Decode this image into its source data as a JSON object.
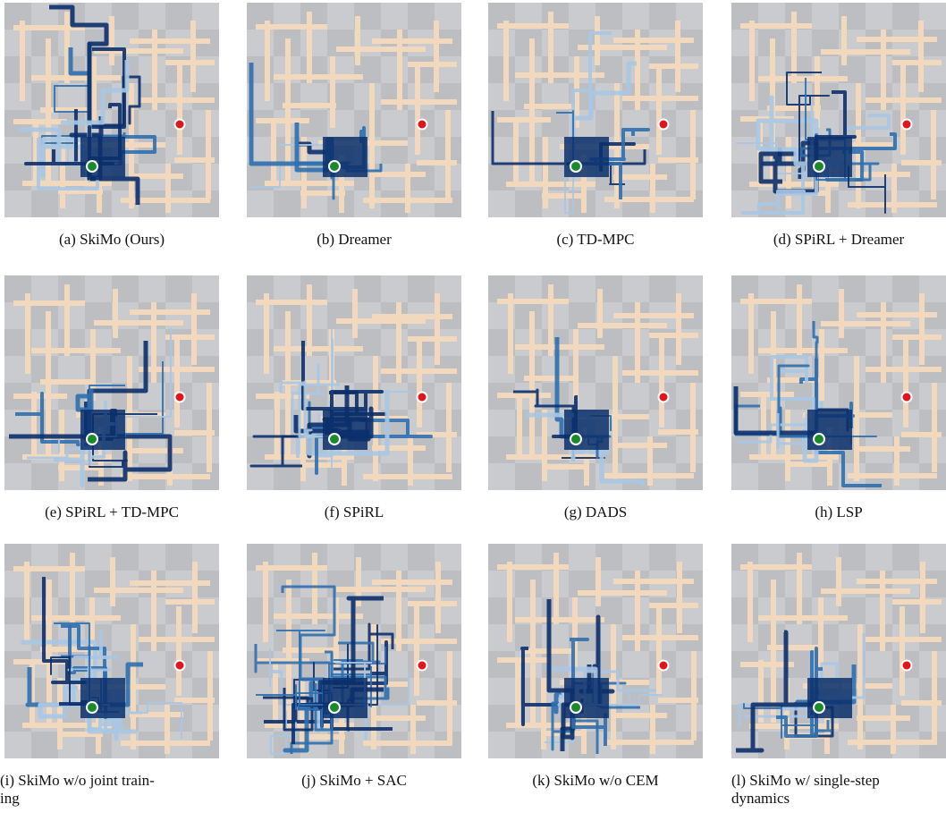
{
  "panels": [
    {
      "caption": "(a) SkiMo (Ours)"
    },
    {
      "caption": "(b) Dreamer"
    },
    {
      "caption": "(c) TD-MPC"
    },
    {
      "caption": "(d) SPiRL + Dreamer"
    },
    {
      "caption": "(e) SPiRL + TD-MPC"
    },
    {
      "caption": "(f) SPiRL"
    },
    {
      "caption": "(g) DADS"
    },
    {
      "caption": "(h) LSP"
    },
    {
      "caption": "(i) SkiMo w/o joint train-\ning"
    },
    {
      "caption": "(j) SkiMo + SAC"
    },
    {
      "caption": "(k) SkiMo w/o CEM"
    },
    {
      "caption": "(l) SkiMo w/ single-step\ndynamics"
    }
  ],
  "colors": {
    "background": "#c9cbce",
    "checker": "#bcbec2",
    "walls": "#f2d9bd",
    "start": "#1a8a2a",
    "goal": "#e0161c",
    "trajectory_dark": "#0b2f6b",
    "trajectory_mid": "#2f6fb0",
    "trajectory_light": "#a9c7e3"
  },
  "legend_icons": {
    "start": "green-start-dot",
    "goal": "red-goal-dot"
  }
}
